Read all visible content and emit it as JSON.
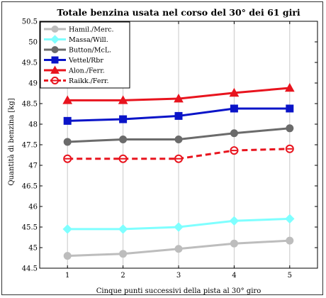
{
  "chart_data": {
    "type": "line",
    "title": "Totale benzina usata nel corso del 30° dei 61 giri",
    "xlabel": "Cinque punti successivi della pista al 30° giro",
    "ylabel": "Quantità di benzina [kg]",
    "x": [
      1,
      2,
      3,
      4,
      5
    ],
    "xlim": [
      0.5,
      5.5
    ],
    "ylim": [
      44.5,
      50.5
    ],
    "xticks": [
      "1",
      "2",
      "3",
      "4",
      "5"
    ],
    "yticks": [
      "44.5",
      "45",
      "45.5",
      "46",
      "46.5",
      "47",
      "47.5",
      "48",
      "48.5",
      "49",
      "49.5",
      "50",
      "50.5"
    ],
    "grid": "vertical",
    "legend_position": "top-left",
    "series": [
      {
        "name": "Hamil./Merc.",
        "values": [
          44.8,
          44.85,
          44.97,
          45.1,
          45.17
        ],
        "color": "#bdbdbd",
        "marker": "circle",
        "filled": true,
        "dashed": false
      },
      {
        "name": "Massa/Will.",
        "values": [
          45.45,
          45.45,
          45.5,
          45.65,
          45.7
        ],
        "color": "#7fffff",
        "marker": "diamond",
        "filled": true,
        "dashed": false
      },
      {
        "name": "Button/McL.",
        "values": [
          47.57,
          47.63,
          47.63,
          47.78,
          47.9
        ],
        "color": "#6b6b6b",
        "marker": "circle",
        "filled": true,
        "dashed": false
      },
      {
        "name": "Vettel/Rbr",
        "values": [
          48.08,
          48.12,
          48.2,
          48.38,
          48.38
        ],
        "color": "#0a14c8",
        "marker": "square",
        "filled": true,
        "dashed": false
      },
      {
        "name": "Alon./Ferr.",
        "values": [
          48.58,
          48.58,
          48.62,
          48.76,
          48.88
        ],
        "color": "#e8141e",
        "marker": "triangle",
        "filled": true,
        "dashed": false
      },
      {
        "name": "Raikk./Ferr.",
        "values": [
          47.16,
          47.16,
          47.16,
          47.36,
          47.4
        ],
        "color": "#e8141e",
        "marker": "circle",
        "filled": false,
        "dashed": true
      }
    ]
  }
}
